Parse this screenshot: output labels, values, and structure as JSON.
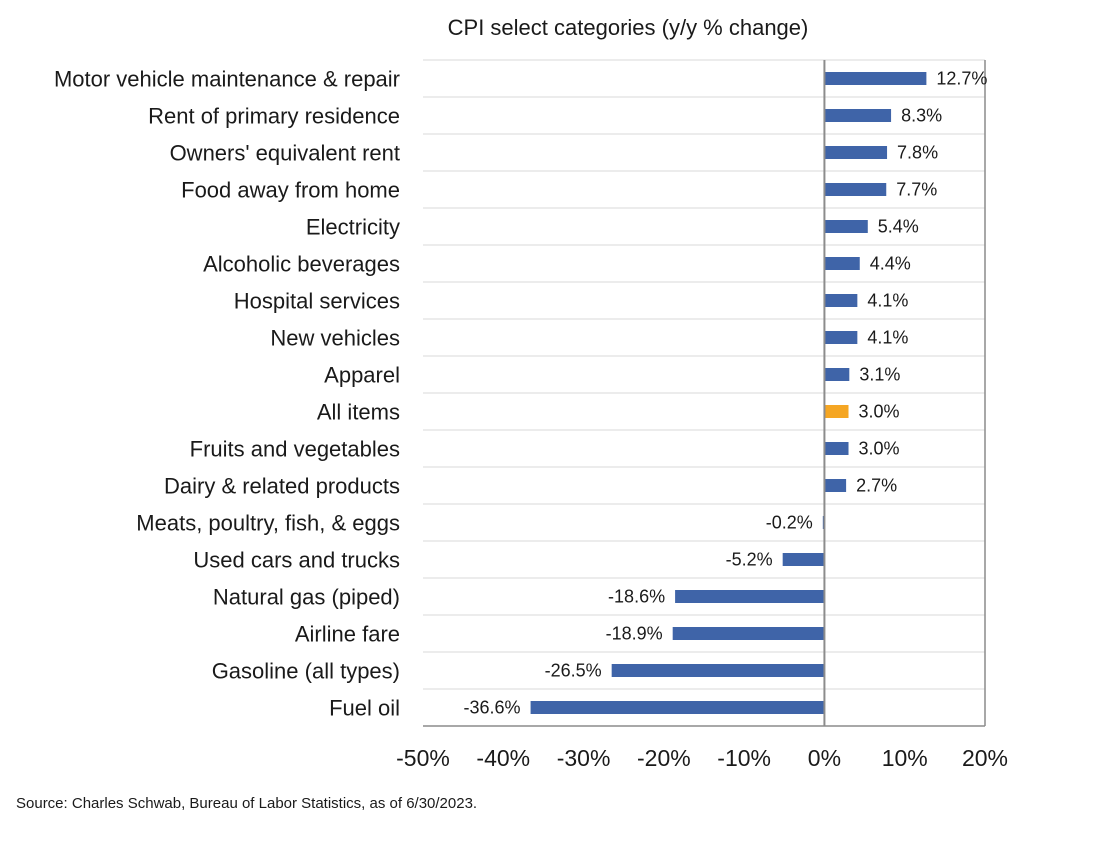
{
  "chart_data": {
    "type": "bar",
    "orientation": "horizontal",
    "title": "CPI select categories (y/y % change)",
    "categories": [
      "Motor vehicle maintenance & repair",
      "Rent of primary residence",
      "Owners' equivalent rent",
      "Food away from home",
      "Electricity",
      "Alcoholic beverages",
      "Hospital services",
      "New vehicles",
      "Apparel",
      "All items",
      "Fruits and vegetables",
      "Dairy & related products",
      "Meats, poultry, fish, & eggs",
      "Used cars and trucks",
      "Natural gas (piped)",
      "Airline fare",
      "Gasoline (all types)",
      "Fuel oil"
    ],
    "values": [
      12.7,
      8.3,
      7.8,
      7.7,
      5.4,
      4.4,
      4.1,
      4.1,
      3.1,
      3.0,
      3.0,
      2.7,
      -0.2,
      -5.2,
      -18.6,
      -18.9,
      -26.5,
      -36.6
    ],
    "data_labels": [
      "12.7%",
      "8.3%",
      "7.8%",
      "7.7%",
      "5.4%",
      "4.4%",
      "4.1%",
      "4.1%",
      "3.1%",
      "3.0%",
      "3.0%",
      "2.7%",
      "-0.2%",
      "-5.2%",
      "-18.6%",
      "-18.9%",
      "-26.5%",
      "-36.6%"
    ],
    "highlight_category": "All items",
    "xlim": [
      -50,
      20
    ],
    "xticks": [
      -50,
      -40,
      -30,
      -20,
      -10,
      0,
      10,
      20
    ],
    "xtick_labels": [
      "-50%",
      "-40%",
      "-30%",
      "-20%",
      "-10%",
      "0%",
      "10%",
      "20%"
    ],
    "grid": "horizontal",
    "colors": {
      "bar": "#3f64a8",
      "highlight": "#f5a623",
      "grid": "#d9d9d9",
      "axis": "#8c8c8c"
    }
  },
  "source_note": "Source: Charles Schwab, Bureau of Labor Statistics, as of 6/30/2023."
}
